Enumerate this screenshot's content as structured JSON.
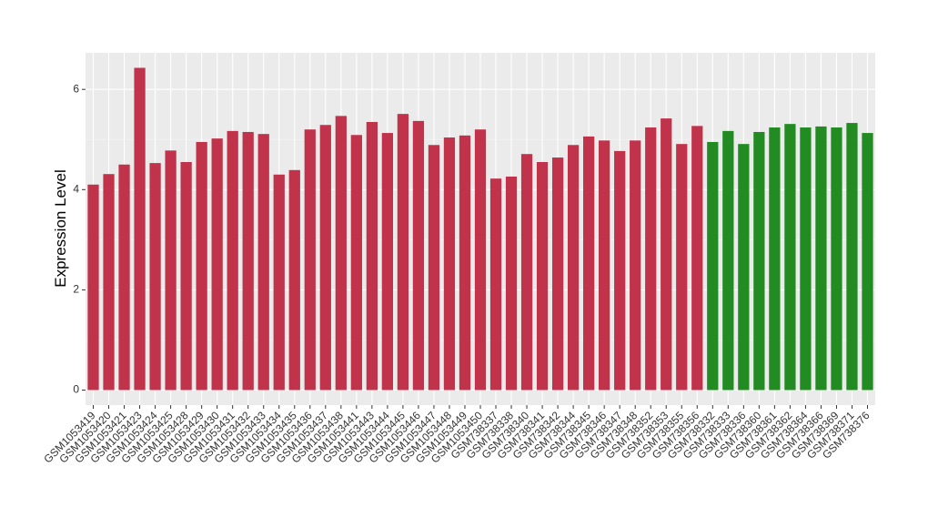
{
  "chart_data": {
    "type": "bar",
    "y_label": "Expression Level",
    "categories": [
      "GSM1053419",
      "GSM1053420",
      "GSM1053421",
      "GSM1053423",
      "GSM1053424",
      "GSM1053425",
      "GSM1053428",
      "GSM1053429",
      "GSM1053430",
      "GSM1053431",
      "GSM1053432",
      "GSM1053433",
      "GSM1053434",
      "GSM1053435",
      "GSM1053436",
      "GSM1053437",
      "GSM1053438",
      "GSM1053441",
      "GSM1053443",
      "GSM1053444",
      "GSM1053445",
      "GSM1053446",
      "GSM1053447",
      "GSM1053448",
      "GSM1053449",
      "GSM1053450",
      "GSM738337",
      "GSM738338",
      "GSM738340",
      "GSM738341",
      "GSM738342",
      "GSM738344",
      "GSM738345",
      "GSM738346",
      "GSM738347",
      "GSM738348",
      "GSM738352",
      "GSM738353",
      "GSM738355",
      "GSM738356",
      "GSM738332",
      "GSM738333",
      "GSM738336",
      "GSM738360",
      "GSM738361",
      "GSM738362",
      "GSM738364",
      "GSM738366",
      "GSM738369",
      "GSM738371",
      "GSM738376"
    ],
    "values": [
      4.1,
      4.31,
      4.5,
      6.43,
      4.53,
      4.78,
      4.55,
      4.95,
      5.02,
      5.17,
      5.15,
      5.11,
      4.3,
      4.39,
      5.2,
      5.29,
      5.47,
      5.09,
      5.35,
      5.13,
      5.51,
      5.37,
      4.89,
      5.04,
      5.08,
      5.2,
      4.22,
      4.26,
      4.71,
      4.55,
      4.64,
      4.89,
      5.06,
      4.98,
      4.77,
      4.98,
      5.24,
      5.42,
      4.91,
      5.27,
      4.95,
      5.17,
      4.91,
      5.15,
      5.24,
      5.31,
      5.24,
      5.26,
      5.24,
      5.33,
      5.13
    ],
    "colors": [
      "#c0334a",
      "#c0334a",
      "#c0334a",
      "#c0334a",
      "#c0334a",
      "#c0334a",
      "#c0334a",
      "#c0334a",
      "#c0334a",
      "#c0334a",
      "#c0334a",
      "#c0334a",
      "#c0334a",
      "#c0334a",
      "#c0334a",
      "#c0334a",
      "#c0334a",
      "#c0334a",
      "#c0334a",
      "#c0334a",
      "#c0334a",
      "#c0334a",
      "#c0334a",
      "#c0334a",
      "#c0334a",
      "#c0334a",
      "#c0334a",
      "#c0334a",
      "#c0334a",
      "#c0334a",
      "#c0334a",
      "#c0334a",
      "#c0334a",
      "#c0334a",
      "#c0334a",
      "#c0334a",
      "#c0334a",
      "#c0334a",
      "#c0334a",
      "#c0334a",
      "#228b22",
      "#228b22",
      "#228b22",
      "#228b22",
      "#228b22",
      "#228b22",
      "#228b22",
      "#228b22",
      "#228b22",
      "#228b22",
      "#228b22"
    ],
    "ylim": [
      -0.3,
      6.73
    ],
    "yticks": [
      0,
      2,
      4,
      6
    ],
    "grid": true
  }
}
